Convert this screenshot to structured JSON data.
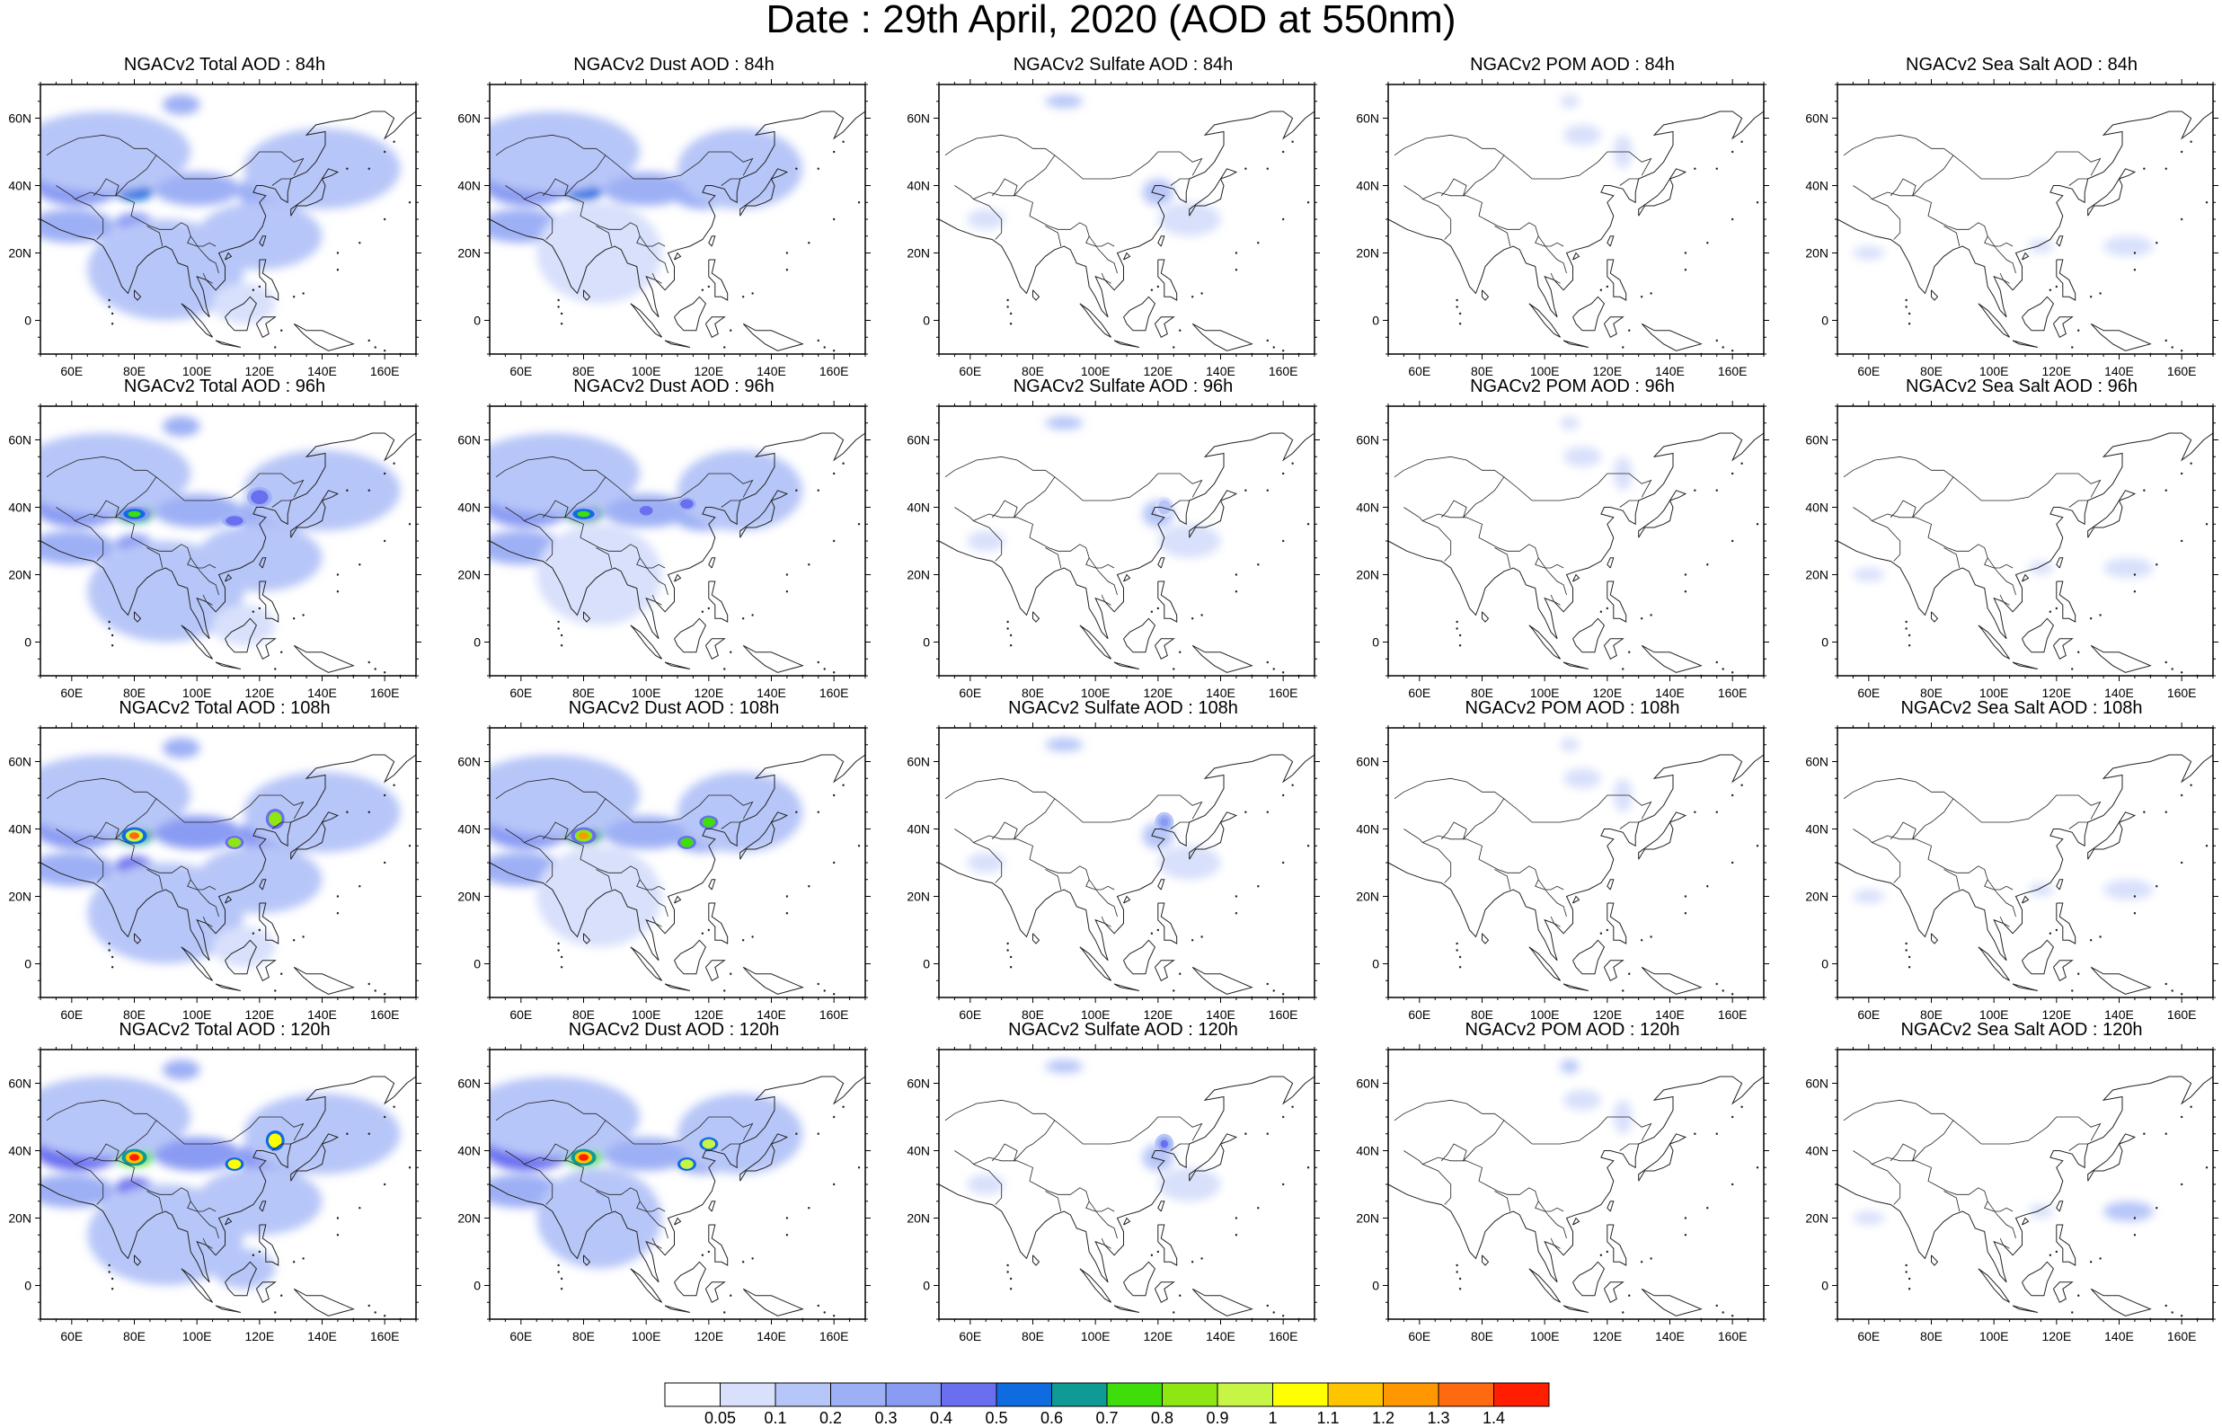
{
  "title": "Date : 29th April, 2020 (AOD at 550nm)",
  "lon_ticks": [
    "60E",
    "80E",
    "100E",
    "120E",
    "140E",
    "160E"
  ],
  "lat_ticks": [
    "60N",
    "40N",
    "20N",
    "0"
  ],
  "species": [
    {
      "key": "total",
      "hot": 1.0
    },
    {
      "key": "dust",
      "hot": 0.95
    },
    {
      "key": "sulfate",
      "hot": 0.25
    },
    {
      "key": "pom",
      "hot": 0.15
    },
    {
      "key": "seasalt",
      "hot": 0.12
    }
  ],
  "rows": [
    {
      "lead": "84h",
      "titles": [
        "NGACv2 Total AOD : 84h",
        "NGACv2 Dust AOD : 84h",
        "NGACv2 Sulfate AOD : 84h",
        "NGACv2 POM AOD : 84h",
        "NGACv2 Sea Salt AOD : 84h"
      ]
    },
    {
      "lead": "96h",
      "titles": [
        "NGACv2 Total AOD : 96h",
        "NGACv2 Dust AOD : 96h",
        "NGACv2 Sulfate AOD : 96h",
        "NGACv2 POM AOD : 96h",
        "NGACv2 Sea Salt AOD : 96h"
      ]
    },
    {
      "lead": "108h",
      "titles": [
        "NGACv2 Total AOD : 108h",
        "NGACv2 Dust AOD : 108h",
        "NGACv2 Sulfate AOD : 108h",
        "NGACv2 POM AOD : 108h",
        "NGACv2 Sea Salt AOD : 108h"
      ]
    },
    {
      "lead": "120h",
      "titles": [
        "NGACv2 Total AOD : 120h",
        "NGACv2 Dust AOD : 120h",
        "NGACv2 Sulfate AOD : 120h",
        "NGACv2 POM AOD : 120h",
        "NGACv2 Sea Salt  AOD : 120h"
      ]
    }
  ],
  "colorbar": {
    "labels": [
      "0.05",
      "0.1",
      "0.2",
      "0.3",
      "0.4",
      "0.5",
      "0.6",
      "0.7",
      "0.8",
      "0.9",
      "1",
      "1.1",
      "1.2",
      "1.3",
      "1.4"
    ],
    "colors": [
      "#ffffff",
      "#d8e0fb",
      "#b7c6f8",
      "#9eb0f5",
      "#8a9bf3",
      "#6a6ff0",
      "#0f6ce0",
      "#0f9a96",
      "#3fde0a",
      "#8ee612",
      "#c7f545",
      "#ffff00",
      "#ffc400",
      "#ff9800",
      "#ff6a10",
      "#ff1e00"
    ]
  },
  "map": {
    "lon_range": [
      50,
      170
    ],
    "lat_range": [
      -10,
      70
    ]
  }
}
